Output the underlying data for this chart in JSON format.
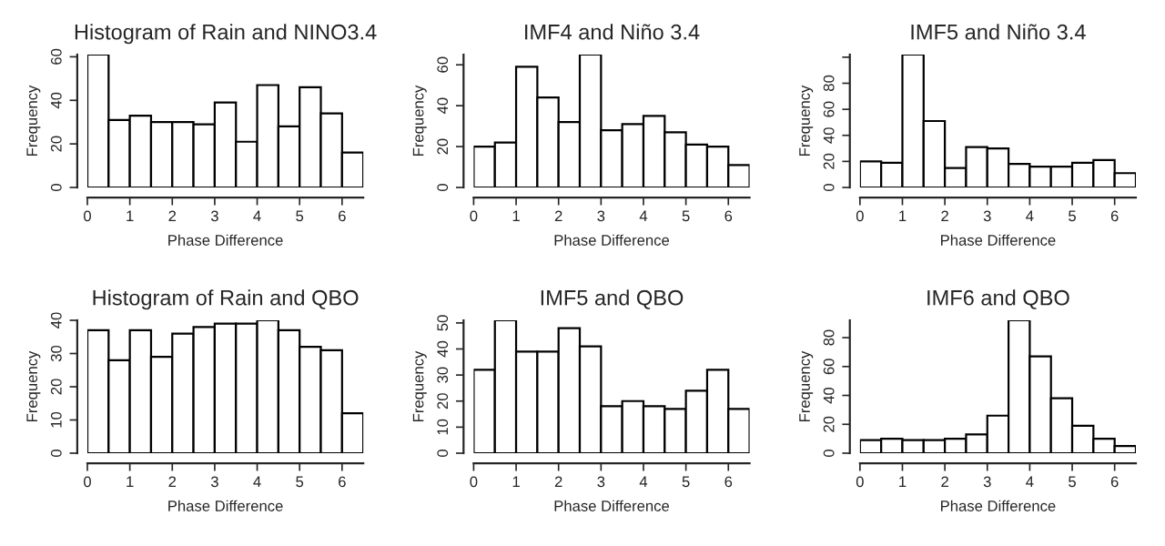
{
  "chart_data": [
    {
      "type": "histogram",
      "title": "Histogram of Rain and NINO3.4",
      "xlabel": "Phase Difference",
      "ylabel": "Frequency",
      "bins": [
        0,
        0.5,
        1,
        1.5,
        2,
        2.5,
        3,
        3.5,
        4,
        4.5,
        5,
        5.5,
        6,
        6.5
      ],
      "values": [
        61,
        31,
        33,
        30,
        30,
        29,
        39,
        21,
        47,
        28,
        46,
        34,
        16
      ],
      "color": "#ffffff",
      "xlim": [
        0,
        6.5
      ],
      "ylim": [
        0,
        61
      ],
      "xticks": [
        0,
        1,
        2,
        3,
        4,
        5,
        6
      ],
      "yticks": [
        0,
        20,
        40,
        60
      ],
      "grid": false
    },
    {
      "type": "histogram",
      "title": "IMF4 and Niño 3.4",
      "xlabel": "Phase Difference",
      "ylabel": "Frequency",
      "bins": [
        0,
        0.5,
        1,
        1.5,
        2,
        2.5,
        3,
        3.5,
        4,
        4.5,
        5,
        5.5,
        6,
        6.5
      ],
      "values": [
        20,
        22,
        59,
        44,
        32,
        65,
        28,
        31,
        35,
        27,
        21,
        20,
        11
      ],
      "color": "#ffffff",
      "xlim": [
        0,
        6.5
      ],
      "ylim": [
        0,
        65
      ],
      "xticks": [
        0,
        1,
        2,
        3,
        4,
        5,
        6
      ],
      "yticks": [
        0,
        20,
        40,
        60
      ],
      "grid": false
    },
    {
      "type": "histogram",
      "title": "IMF5 and Niño 3.4",
      "xlabel": "Phase Difference",
      "ylabel": "Frequency",
      "bins": [
        0,
        0.5,
        1,
        1.5,
        2,
        2.5,
        3,
        3.5,
        4,
        4.5,
        5,
        5.5,
        6,
        6.5
      ],
      "values": [
        20,
        19,
        102,
        51,
        15,
        31,
        30,
        18,
        16,
        16,
        19,
        21,
        11
      ],
      "color": "#ffffff",
      "xlim": [
        0,
        6.5
      ],
      "ylim": [
        0,
        102
      ],
      "xticks": [
        0,
        1,
        2,
        3,
        4,
        5,
        6
      ],
      "yticks": [
        0,
        20,
        40,
        60,
        80,
        {
          "value": 100,
          "label": null
        }
      ],
      "grid": false
    },
    {
      "type": "histogram",
      "title": "Histogram of Rain and QBO",
      "xlabel": "Phase Difference",
      "ylabel": "Frequency",
      "bins": [
        0,
        0.5,
        1,
        1.5,
        2,
        2.5,
        3,
        3.5,
        4,
        4.5,
        5,
        5.5,
        6,
        6.5
      ],
      "values": [
        37,
        28,
        37,
        29,
        36,
        38,
        39,
        39,
        40,
        37,
        32,
        31,
        12
      ],
      "color": "#ffffff",
      "xlim": [
        0,
        6.5
      ],
      "ylim": [
        0,
        40
      ],
      "xticks": [
        0,
        1,
        2,
        3,
        4,
        5,
        6
      ],
      "yticks": [
        0,
        10,
        20,
        30,
        40
      ],
      "grid": false
    },
    {
      "type": "histogram",
      "title": "IMF5 and QBO",
      "xlabel": "Phase Difference",
      "ylabel": "Frequency",
      "bins": [
        0,
        0.5,
        1,
        1.5,
        2,
        2.5,
        3,
        3.5,
        4,
        4.5,
        5,
        5.5,
        6,
        6.5
      ],
      "values": [
        32,
        51,
        39,
        39,
        48,
        41,
        18,
        20,
        18,
        17,
        24,
        32,
        17
      ],
      "color": "#ffffff",
      "xlim": [
        0,
        6.5
      ],
      "ylim": [
        0,
        51
      ],
      "xticks": [
        0,
        1,
        2,
        3,
        4,
        5,
        6
      ],
      "yticks": [
        0,
        10,
        20,
        30,
        40,
        50
      ],
      "grid": false
    },
    {
      "type": "histogram",
      "title": "IMF6 and QBO",
      "xlabel": "Phase Difference",
      "ylabel": "Frequency",
      "bins": [
        0,
        0.5,
        1,
        1.5,
        2,
        2.5,
        3,
        3.5,
        4,
        4.5,
        5,
        5.5,
        6,
        6.5
      ],
      "values": [
        9,
        10,
        9,
        9,
        10,
        13,
        26,
        92,
        67,
        38,
        19,
        10,
        5
      ],
      "color": "#ffffff",
      "xlim": [
        0,
        6.5
      ],
      "ylim": [
        0,
        92
      ],
      "xticks": [
        0,
        1,
        2,
        3,
        4,
        5,
        6
      ],
      "yticks": [
        0,
        20,
        40,
        60,
        80
      ],
      "grid": false
    }
  ]
}
